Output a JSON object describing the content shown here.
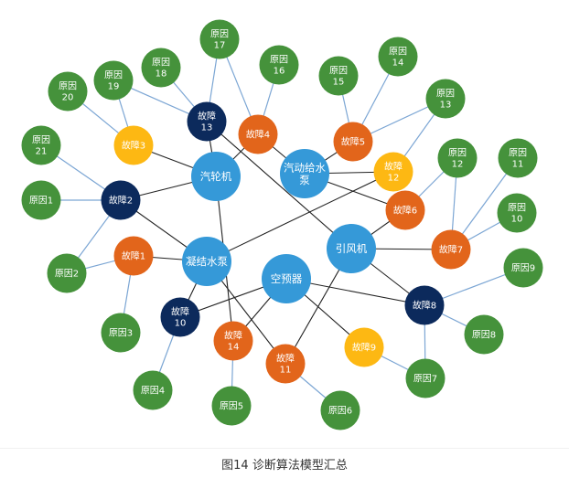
{
  "caption": "图14 诊断算法模型汇总",
  "colors": {
    "equipment": "#3599d8",
    "fault_orange": "#e2651b",
    "fault_navy": "#0c2a5c",
    "fault_yellow": "#fdb813",
    "cause": "#45923b",
    "edge_equipment": "#222222",
    "edge_cause": "#7ca6d4"
  },
  "nodes": [
    {
      "id": "e1",
      "type": "equipment",
      "label": [
        "汽轮机"
      ]
    },
    {
      "id": "e2",
      "type": "equipment",
      "label": [
        "汽动给水",
        "泵"
      ]
    },
    {
      "id": "e3",
      "type": "equipment",
      "label": [
        "凝结水泵"
      ]
    },
    {
      "id": "e4",
      "type": "equipment",
      "label": [
        "空预器"
      ]
    },
    {
      "id": "e5",
      "type": "equipment",
      "label": [
        "引风机"
      ]
    },
    {
      "id": "f1",
      "type": "fault_orange",
      "label": [
        "故障1"
      ]
    },
    {
      "id": "f2",
      "type": "fault_navy",
      "label": [
        "故障2"
      ]
    },
    {
      "id": "f3",
      "type": "fault_yellow",
      "label": [
        "故障3"
      ]
    },
    {
      "id": "f4",
      "type": "fault_orange",
      "label": [
        "故障4"
      ]
    },
    {
      "id": "f5",
      "type": "fault_orange",
      "label": [
        "故障5"
      ]
    },
    {
      "id": "f6",
      "type": "fault_orange",
      "label": [
        "故障6"
      ]
    },
    {
      "id": "f7",
      "type": "fault_orange",
      "label": [
        "故障7"
      ]
    },
    {
      "id": "f8",
      "type": "fault_navy",
      "label": [
        "故障8"
      ]
    },
    {
      "id": "f9",
      "type": "fault_yellow",
      "label": [
        "故障9"
      ]
    },
    {
      "id": "f10",
      "type": "fault_navy",
      "label": [
        "故障",
        "10"
      ]
    },
    {
      "id": "f11",
      "type": "fault_orange",
      "label": [
        "故障",
        "11"
      ]
    },
    {
      "id": "f12",
      "type": "fault_yellow",
      "label": [
        "故障",
        "12"
      ]
    },
    {
      "id": "f13",
      "type": "fault_navy",
      "label": [
        "故障",
        "13"
      ]
    },
    {
      "id": "f14",
      "type": "fault_orange",
      "label": [
        "故障",
        "14"
      ]
    },
    {
      "id": "c1",
      "type": "cause",
      "label": [
        "原因1"
      ]
    },
    {
      "id": "c2",
      "type": "cause",
      "label": [
        "原因2"
      ]
    },
    {
      "id": "c3",
      "type": "cause",
      "label": [
        "原因3"
      ]
    },
    {
      "id": "c4",
      "type": "cause",
      "label": [
        "原因4"
      ]
    },
    {
      "id": "c5",
      "type": "cause",
      "label": [
        "原因5"
      ]
    },
    {
      "id": "c6",
      "type": "cause",
      "label": [
        "原因6"
      ]
    },
    {
      "id": "c7",
      "type": "cause",
      "label": [
        "原因7"
      ]
    },
    {
      "id": "c8",
      "type": "cause",
      "label": [
        "原因8"
      ]
    },
    {
      "id": "c9",
      "type": "cause",
      "label": [
        "原因9"
      ]
    },
    {
      "id": "c10",
      "type": "cause",
      "label": [
        "原因",
        "10"
      ]
    },
    {
      "id": "c11",
      "type": "cause",
      "label": [
        "原因",
        "11"
      ]
    },
    {
      "id": "c12",
      "type": "cause",
      "label": [
        "原因",
        "12"
      ]
    },
    {
      "id": "c13",
      "type": "cause",
      "label": [
        "原因",
        "13"
      ]
    },
    {
      "id": "c14",
      "type": "cause",
      "label": [
        "原因",
        "14"
      ]
    },
    {
      "id": "c15",
      "type": "cause",
      "label": [
        "原因",
        "15"
      ]
    },
    {
      "id": "c16",
      "type": "cause",
      "label": [
        "原因",
        "16"
      ]
    },
    {
      "id": "c17",
      "type": "cause",
      "label": [
        "原因",
        "17"
      ]
    },
    {
      "id": "c18",
      "type": "cause",
      "label": [
        "原因",
        "18"
      ]
    },
    {
      "id": "c19",
      "type": "cause",
      "label": [
        "原因",
        "19"
      ]
    },
    {
      "id": "c20",
      "type": "cause",
      "label": [
        "原因",
        "20"
      ]
    },
    {
      "id": "c21",
      "type": "cause",
      "label": [
        "原因",
        "21"
      ]
    }
  ],
  "edges": [
    [
      "e1",
      "f13"
    ],
    [
      "e1",
      "f3"
    ],
    [
      "e1",
      "f4"
    ],
    [
      "e1",
      "f2"
    ],
    [
      "e1",
      "f14"
    ],
    [
      "f13",
      "e5"
    ],
    [
      "f4",
      "e2"
    ],
    [
      "e2",
      "f5"
    ],
    [
      "e2",
      "f12"
    ],
    [
      "e2",
      "f6"
    ],
    [
      "e3",
      "f2"
    ],
    [
      "e3",
      "f1"
    ],
    [
      "e3",
      "f12"
    ],
    [
      "e3",
      "f10"
    ],
    [
      "e3",
      "f11"
    ],
    [
      "e4",
      "f10"
    ],
    [
      "e4",
      "f14"
    ],
    [
      "e4",
      "f8"
    ],
    [
      "e4",
      "f9"
    ],
    [
      "e5",
      "f6"
    ],
    [
      "e5",
      "f7"
    ],
    [
      "e5",
      "f8"
    ],
    [
      "e5",
      "f11"
    ],
    [
      "f13",
      "c17"
    ],
    [
      "f13",
      "c18"
    ],
    [
      "f13",
      "c19"
    ],
    [
      "f4",
      "c17"
    ],
    [
      "f4",
      "c16"
    ],
    [
      "f3",
      "c19"
    ],
    [
      "f3",
      "c20"
    ],
    [
      "f2",
      "c21"
    ],
    [
      "f2",
      "c1"
    ],
    [
      "f2",
      "c2"
    ],
    [
      "f1",
      "c2"
    ],
    [
      "f1",
      "c3"
    ],
    [
      "f10",
      "c4"
    ],
    [
      "f14",
      "c5"
    ],
    [
      "f11",
      "c6"
    ],
    [
      "f9",
      "c7"
    ],
    [
      "f8",
      "c7"
    ],
    [
      "f8",
      "c8"
    ],
    [
      "f8",
      "c9"
    ],
    [
      "f7",
      "c12"
    ],
    [
      "f7",
      "c11"
    ],
    [
      "f7",
      "c10"
    ],
    [
      "f6",
      "c12"
    ],
    [
      "f12",
      "c13"
    ],
    [
      "f5",
      "c15"
    ],
    [
      "f5",
      "c14"
    ],
    [
      "f5",
      "c13"
    ]
  ]
}
